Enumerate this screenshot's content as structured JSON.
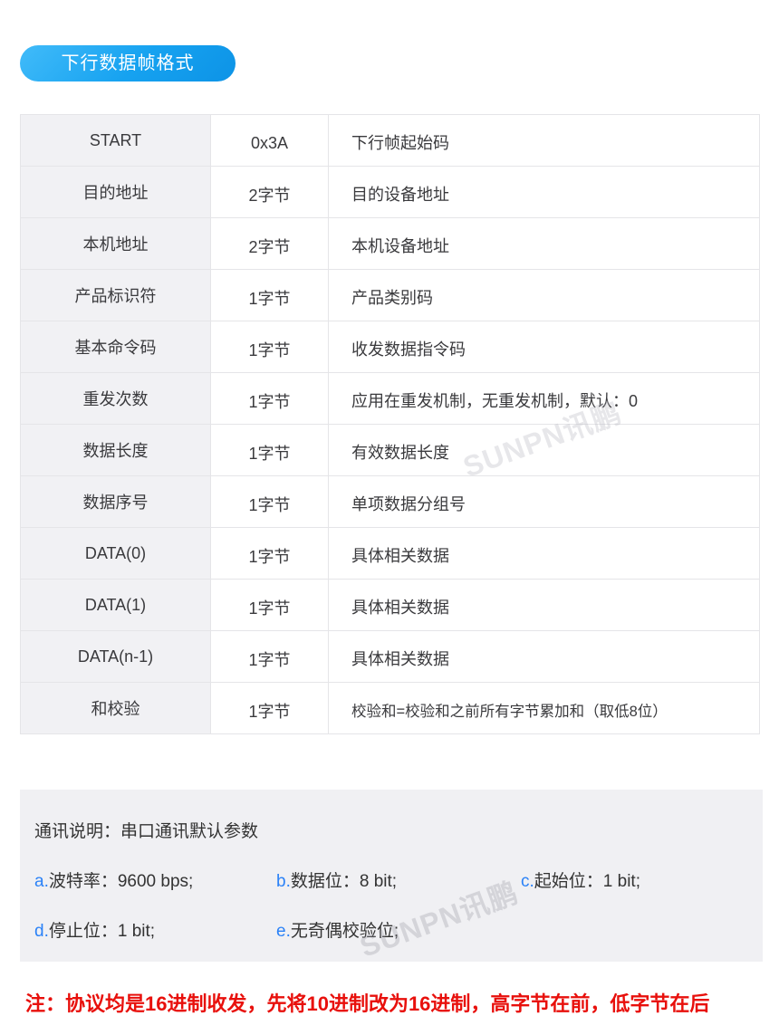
{
  "page": {
    "title_badge": "下行数据帧格式"
  },
  "frame_table": {
    "rows": [
      {
        "field": "START",
        "length": "0x3A",
        "desc": "下行帧起始码"
      },
      {
        "field": "目的地址",
        "length": "2字节",
        "desc": "目的设备地址"
      },
      {
        "field": "本机地址",
        "length": "2字节",
        "desc": "本机设备地址"
      },
      {
        "field": "产品标识符",
        "length": "1字节",
        "desc": "产品类别码"
      },
      {
        "field": "基本命令码",
        "length": "1字节",
        "desc": "收发数据指令码"
      },
      {
        "field": "重发次数",
        "length": "1字节",
        "desc": "应用在重发机制，无重发机制，默认：0"
      },
      {
        "field": "数据长度",
        "length": "1字节",
        "desc": "有效数据长度"
      },
      {
        "field": "数据序号",
        "length": "1字节",
        "desc": "单项数据分组号"
      },
      {
        "field": "DATA(0)",
        "length": "1字节",
        "desc": "具体相关数据"
      },
      {
        "field": "DATA(1)",
        "length": "1字节",
        "desc": "具体相关数据"
      },
      {
        "field": "DATA(n-1)",
        "length": "1字节",
        "desc": "具体相关数据"
      },
      {
        "field": "和校验",
        "length": "1字节",
        "desc": "校验和=校验和之前所有字节累加和（取低8位）"
      }
    ]
  },
  "comm_notes": {
    "title": "通讯说明：串口通讯默认参数",
    "items": [
      {
        "key": "a.",
        "text": "波特率：9600 bps;"
      },
      {
        "key": "b.",
        "text": "数据位：8 bit;"
      },
      {
        "key": "c.",
        "text": "起始位：1 bit;"
      },
      {
        "key": "d.",
        "text": "停止位：1 bit;"
      },
      {
        "key": "e.",
        "text": "无奇偶校验位;"
      }
    ]
  },
  "footnote": "注：协议均是16进制收发，先将10进制改为16进制，高字节在前，低字节在后",
  "watermark": "SUNPN讯鹏",
  "colors": {
    "badge_blue_top": "#41bbf9",
    "badge_blue_bottom": "#0d93e6",
    "note_key_blue": "#2b82f7",
    "footnote_red": "#e8100c",
    "table_field_bg": "#f1f1f4",
    "table_border": "#e5e5e8",
    "panel_bg": "#f0f0f3"
  }
}
